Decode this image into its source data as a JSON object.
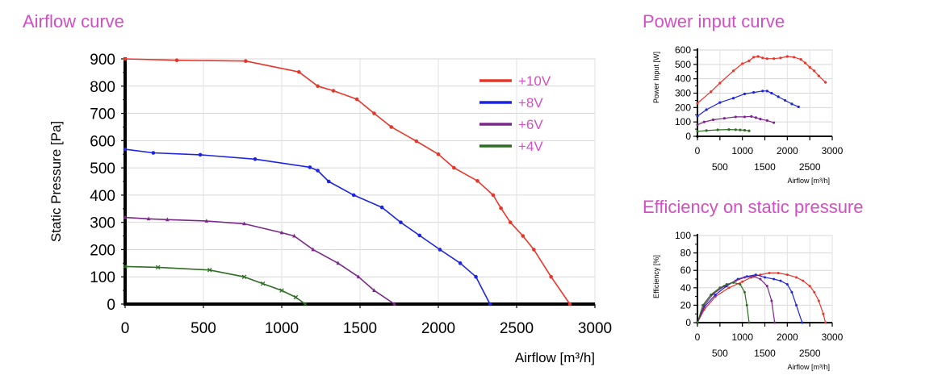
{
  "titles": {
    "main": "Airflow curve",
    "power": "Power input curve",
    "efficiency": "Efficiency on static pressure"
  },
  "chart_data": [
    {
      "id": "airflow",
      "type": "line",
      "title": "Airflow curve",
      "xlabel": "Airflow [m³/h]",
      "ylabel": "Static Pressure [Pa]",
      "xlim": [
        0,
        3000
      ],
      "ylim": [
        0,
        900
      ],
      "xticks": [
        0,
        500,
        1000,
        1500,
        2000,
        2500,
        3000
      ],
      "yticks": [
        0,
        100,
        200,
        300,
        400,
        500,
        600,
        700,
        800,
        900
      ],
      "legend": "top-right",
      "series": [
        {
          "name": "+10V",
          "color": "#e8352a",
          "marker": "dot",
          "x": [
            0,
            330,
            770,
            1110,
            1230,
            1330,
            1480,
            1590,
            1700,
            1860,
            2000,
            2100,
            2250,
            2350,
            2400,
            2460,
            2540,
            2610,
            2720,
            2840
          ],
          "y": [
            900,
            895,
            892,
            852,
            800,
            783,
            752,
            700,
            650,
            598,
            550,
            500,
            452,
            400,
            352,
            300,
            250,
            200,
            100,
            0
          ]
        },
        {
          "name": "+8V",
          "color": "#1c24e0",
          "marker": "dot",
          "x": [
            0,
            180,
            480,
            830,
            1180,
            1230,
            1300,
            1460,
            1640,
            1760,
            1880,
            2010,
            2140,
            2240,
            2330
          ],
          "y": [
            568,
            555,
            548,
            532,
            502,
            490,
            450,
            400,
            355,
            300,
            252,
            200,
            150,
            100,
            0
          ]
        },
        {
          "name": "+6V",
          "color": "#7a2789",
          "marker": "triangle",
          "x": [
            0,
            150,
            270,
            520,
            760,
            1000,
            1080,
            1200,
            1360,
            1490,
            1590,
            1720
          ],
          "y": [
            318,
            313,
            310,
            305,
            295,
            262,
            250,
            200,
            150,
            100,
            50,
            0
          ]
        },
        {
          "name": "+4V",
          "color": "#2e6d24",
          "marker": "cross",
          "x": [
            0,
            210,
            540,
            760,
            880,
            1000,
            1090,
            1150
          ],
          "y": [
            138,
            135,
            125,
            100,
            75,
            50,
            25,
            0
          ]
        }
      ]
    },
    {
      "id": "power",
      "type": "line",
      "title": "Power input curve",
      "xlabel": "Airflow [m³/h]",
      "ylabel": "Power Input [W]",
      "xlim": [
        0,
        3000
      ],
      "ylim": [
        0,
        600
      ],
      "xticks": [
        0,
        500,
        1000,
        1500,
        2000,
        2500,
        3000
      ],
      "yticks": [
        0,
        100,
        200,
        300,
        400,
        500,
        600
      ],
      "series": [
        {
          "name": "+10V",
          "color": "#e8352a",
          "x": [
            0,
            300,
            500,
            800,
            1000,
            1150,
            1250,
            1350,
            1450,
            1550,
            1700,
            1850,
            2000,
            2150,
            2300,
            2400,
            2500,
            2600,
            2700,
            2850
          ],
          "y": [
            230,
            310,
            370,
            455,
            505,
            525,
            550,
            555,
            545,
            540,
            540,
            545,
            555,
            550,
            535,
            510,
            480,
            455,
            420,
            375
          ]
        },
        {
          "name": "+8V",
          "color": "#1c24e0",
          "x": [
            0,
            200,
            500,
            800,
            1050,
            1250,
            1450,
            1550,
            1650,
            1800,
            1950,
            2100,
            2250
          ],
          "y": [
            140,
            185,
            235,
            265,
            295,
            305,
            315,
            315,
            300,
            275,
            250,
            225,
            205
          ]
        },
        {
          "name": "+6V",
          "color": "#7a2789",
          "x": [
            0,
            150,
            350,
            600,
            850,
            1050,
            1200,
            1300,
            1400,
            1550,
            1700
          ],
          "y": [
            80,
            100,
            115,
            125,
            135,
            135,
            138,
            130,
            120,
            110,
            95
          ]
        },
        {
          "name": "+4V",
          "color": "#2e6d24",
          "x": [
            0,
            200,
            450,
            700,
            850,
            950,
            1050,
            1150
          ],
          "y": [
            35,
            40,
            45,
            47,
            46,
            44,
            42,
            38
          ]
        }
      ]
    },
    {
      "id": "efficiency",
      "type": "line",
      "title": "Efficiency on static pressure",
      "xlabel": "Airflow [m³/h]",
      "ylabel": "Efficiency [%]",
      "xlim": [
        0,
        3000
      ],
      "ylim": [
        0,
        100
      ],
      "xticks": [
        0,
        500,
        1000,
        1500,
        2000,
        2500,
        3000
      ],
      "yticks": [
        0,
        20,
        40,
        60,
        80,
        100
      ],
      "series": [
        {
          "name": "+10V",
          "color": "#e8352a",
          "x": [
            0,
            150,
            400,
            700,
            1000,
            1200,
            1400,
            1600,
            1800,
            2000,
            2200,
            2350,
            2500,
            2600,
            2700,
            2800,
            2850
          ],
          "y": [
            0,
            15,
            30,
            40,
            47,
            52,
            55,
            57,
            57,
            55,
            52,
            48,
            42,
            35,
            25,
            10,
            0
          ]
        },
        {
          "name": "+8V",
          "color": "#1c24e0",
          "x": [
            0,
            150,
            400,
            650,
            900,
            1100,
            1300,
            1500,
            1700,
            1850,
            2000,
            2100,
            2200,
            2330
          ],
          "y": [
            0,
            18,
            32,
            42,
            50,
            53,
            55,
            52,
            50,
            48,
            44,
            35,
            20,
            0
          ]
        },
        {
          "name": "+6V",
          "color": "#7a2789",
          "x": [
            0,
            150,
            350,
            600,
            850,
            1050,
            1250,
            1400,
            1550,
            1650,
            1720
          ],
          "y": [
            0,
            20,
            33,
            42,
            48,
            52,
            53,
            50,
            42,
            25,
            0
          ]
        },
        {
          "name": "+4V",
          "color": "#2e6d24",
          "x": [
            0,
            120,
            300,
            500,
            650,
            800,
            950,
            1050,
            1100,
            1150
          ],
          "y": [
            0,
            20,
            32,
            40,
            44,
            46,
            44,
            35,
            20,
            0
          ]
        }
      ]
    }
  ]
}
